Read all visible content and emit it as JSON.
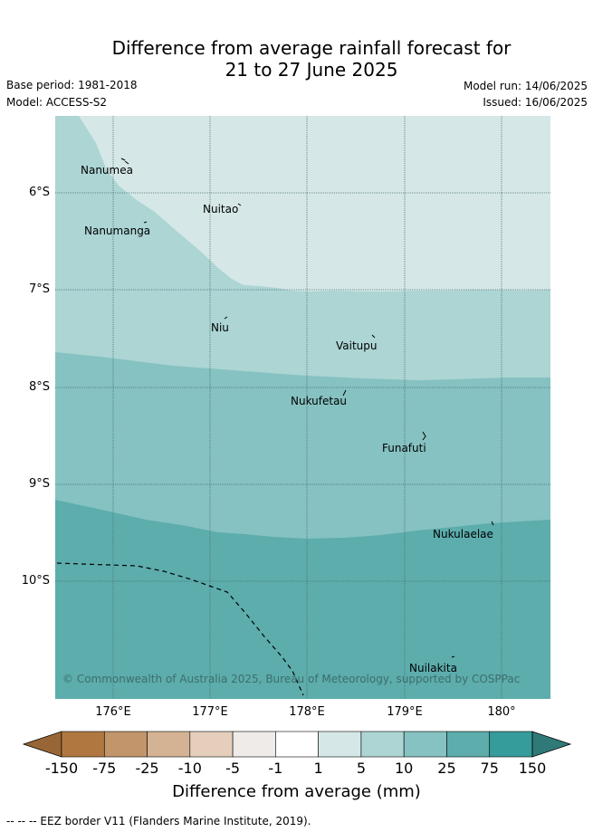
{
  "title_line1": "Difference from average rainfall forecast for",
  "title_line2": "21 to 27 June 2025",
  "base_period": "Base period: 1981-2018",
  "model": "Model: ACCESS-S2",
  "model_run": "Model run: 14/06/2025",
  "issued": "Issued: 16/06/2025",
  "y_axis_labels": [
    "6°S",
    "7°S",
    "8°S",
    "9°S",
    "10°S"
  ],
  "x_axis_labels": [
    "176°E",
    "177°E",
    "178°E",
    "179°E",
    "180°"
  ],
  "places": [
    "Nanumea",
    "Nuitao",
    "Nanumanga",
    "Niu",
    "Vaitupu",
    "Nukufetau",
    "Funafuti",
    "Nukulaelae",
    "Nuilakita"
  ],
  "copyright": "© Commonwealth of Australia 2025, Bureau of Meteorology, supported by COSPPac",
  "colorbar": {
    "title": "Difference from average (mm)",
    "tick_labels": [
      "-150",
      "-75",
      "-25",
      "-10",
      "-5",
      "-1",
      "1",
      "5",
      "10",
      "25",
      "75",
      "150"
    ],
    "colors": [
      "#b07840",
      "#c2956a",
      "#d4b394",
      "#e5cfbc",
      "#eeebe8",
      "#ffffff",
      "#d5e8e7",
      "#acd5d4",
      "#85c2c1",
      "#5cadac",
      "#359c9b"
    ],
    "under_color": "#986636",
    "over_color": "#2f7a79"
  },
  "map_fill_colors": {
    "band_1_to_5": "#d5e8e7",
    "band_5_to_10": "#acd5d4",
    "band_10_to_25": "#85c2c1",
    "band_25_to_75": "#5cadac"
  },
  "eez_note": "-- -- -- EEZ border V11 (Flanders Marine Institute, 2019)."
}
